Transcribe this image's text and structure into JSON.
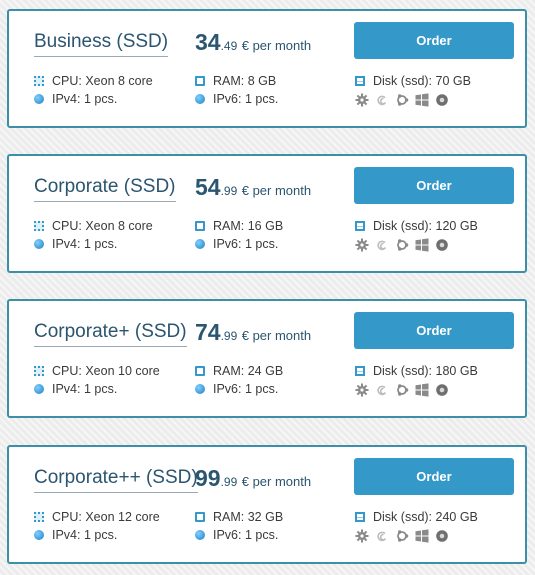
{
  "plans": [
    {
      "name": "Business (SSD)",
      "price_int": "34",
      "price_dec": ".49",
      "price_suffix": "€ per month",
      "order_label": "Order",
      "cpu": "CPU: Xeon 8 core",
      "ram": "RAM: 8 GB",
      "disk": "Disk (ssd): 70 GB",
      "ipv4": "IPv4: 1 pcs.",
      "ipv6": "IPv6: 1 pcs."
    },
    {
      "name": "Corporate (SSD)",
      "price_int": "54",
      "price_dec": ".99",
      "price_suffix": "€ per month",
      "order_label": "Order",
      "cpu": "CPU: Xeon 8 core",
      "ram": "RAM: 16 GB",
      "disk": "Disk (ssd): 120 GB",
      "ipv4": "IPv4: 1 pcs.",
      "ipv6": "IPv6: 1 pcs."
    },
    {
      "name": "Corporate+ (SSD)",
      "price_int": "74",
      "price_dec": ".99",
      "price_suffix": "€ per month",
      "order_label": "Order",
      "cpu": "CPU: Xeon 10 core",
      "ram": "RAM: 24 GB",
      "disk": "Disk (ssd): 180 GB",
      "ipv4": "IPv4: 1 pcs.",
      "ipv6": "IPv6: 1 pcs."
    },
    {
      "name": "Corporate++ (SSD)",
      "price_int": "99",
      "price_dec": ".99",
      "price_suffix": "€ per month",
      "order_label": "Order",
      "cpu": "CPU: Xeon 12 core",
      "ram": "RAM: 32 GB",
      "disk": "Disk (ssd): 240 GB",
      "ipv4": "IPv4: 1 pcs.",
      "ipv6": "IPv6: 1 pcs."
    }
  ],
  "os_icons": [
    "freebsd-icon",
    "debian-icon",
    "ubuntu-icon",
    "windows-icon",
    "centos-icon"
  ],
  "colors": {
    "accent": "#3499c9",
    "card_border": "#3b8fa6",
    "title": "#2b5570"
  }
}
